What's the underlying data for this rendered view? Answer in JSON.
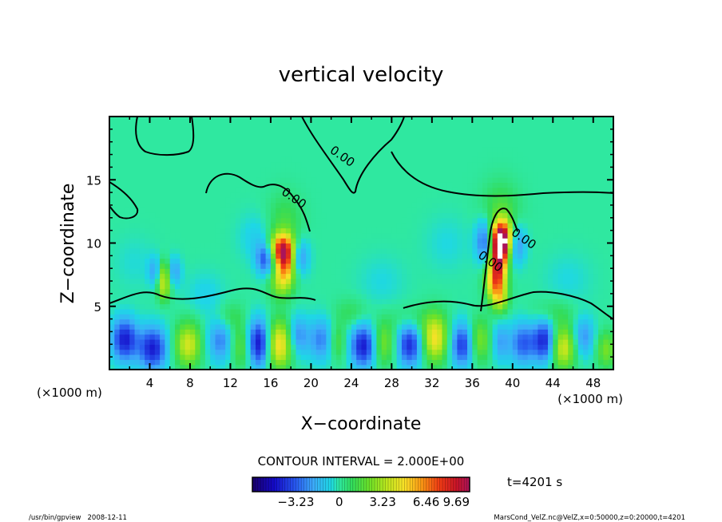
{
  "chart_data": {
    "type": "heatmap",
    "title": "vertical velocity",
    "xlabel": "X−coordinate",
    "ylabel": "Z−coordinate",
    "x_unit_left": "(×1000 m)",
    "x_unit_right": "(×1000 m)",
    "xlim": [
      0,
      50
    ],
    "ylim": [
      0,
      20
    ],
    "xticks": [
      4,
      8,
      12,
      16,
      20,
      24,
      28,
      32,
      36,
      40,
      44,
      48
    ],
    "yticks": [
      5,
      10,
      15
    ],
    "contour_interval_text": "CONTOUR INTERVAL = 2.000E+00",
    "time_text": "t=4201 s",
    "colorbar": {
      "min": -6.46,
      "max": 9.69,
      "tick_values": [
        -3.23,
        0,
        3.23,
        6.46,
        9.69
      ],
      "tick_labels": [
        "−3.23",
        "0",
        "3.23",
        "6.46",
        "9.69"
      ]
    },
    "contour_labels": [
      {
        "x": 21.8,
        "z": 17.2,
        "text": "0.00"
      },
      {
        "x": 17.0,
        "z": 13.9,
        "text": "0.00"
      },
      {
        "x": 36.5,
        "z": 8.9,
        "text": "0.00"
      },
      {
        "x": 39.8,
        "z": 10.7,
        "text": "0.00"
      }
    ],
    "features": [
      {
        "x": 17.2,
        "z": 9.5,
        "sx": 0.9,
        "sz": 0.9,
        "w": 8.5
      },
      {
        "x": 17.6,
        "z": 8.2,
        "sx": 0.7,
        "sz": 1.0,
        "w": 4.0
      },
      {
        "x": 17.0,
        "z": 7.0,
        "sx": 0.8,
        "sz": 1.0,
        "w": 3.0
      },
      {
        "x": 15.6,
        "z": 8.8,
        "sx": 0.7,
        "sz": 0.9,
        "w": -4.0
      },
      {
        "x": 18.7,
        "z": 9.0,
        "sx": 0.7,
        "sz": 1.0,
        "w": -3.5
      },
      {
        "x": 17.4,
        "z": 11.8,
        "sx": 1.2,
        "sz": 1.5,
        "w": 1.3
      },
      {
        "x": 38.9,
        "z": 10.3,
        "sx": 0.75,
        "sz": 1.0,
        "w": 12.0
      },
      {
        "x": 38.6,
        "z": 8.6,
        "sx": 0.6,
        "sz": 1.0,
        "w": 7.0
      },
      {
        "x": 38.3,
        "z": 7.0,
        "sx": 0.7,
        "sz": 0.9,
        "w": 5.5
      },
      {
        "x": 38.7,
        "z": 5.6,
        "sx": 0.6,
        "sz": 0.8,
        "w": 3.5
      },
      {
        "x": 37.4,
        "z": 10.2,
        "sx": 0.7,
        "sz": 1.2,
        "w": -4.0
      },
      {
        "x": 40.2,
        "z": 10.0,
        "sx": 0.7,
        "sz": 1.1,
        "w": -3.5
      },
      {
        "x": 38.8,
        "z": 12.5,
        "sx": 1.3,
        "sz": 1.6,
        "w": 1.6
      },
      {
        "x": 5.4,
        "z": 7.6,
        "sx": 0.45,
        "sz": 0.8,
        "w": 3.6
      },
      {
        "x": 5.4,
        "z": 6.3,
        "sx": 0.45,
        "sz": 0.7,
        "w": 2.5
      },
      {
        "x": 4.6,
        "z": 7.8,
        "sx": 0.5,
        "sz": 0.8,
        "w": -2.2
      },
      {
        "x": 6.4,
        "z": 7.8,
        "sx": 0.5,
        "sz": 0.8,
        "w": -2.2
      },
      {
        "x": 1.5,
        "z": 2.4,
        "sx": 0.9,
        "sz": 1.2,
        "w": -4.5
      },
      {
        "x": 4.3,
        "z": 1.7,
        "sx": 1.0,
        "sz": 1.2,
        "w": -4.5
      },
      {
        "x": 7.8,
        "z": 2.0,
        "sx": 0.9,
        "sz": 1.2,
        "w": 4.0
      },
      {
        "x": 11.0,
        "z": 2.3,
        "sx": 0.9,
        "sz": 1.2,
        "w": -2.6
      },
      {
        "x": 13.2,
        "z": 1.9,
        "sx": 0.8,
        "sz": 1.2,
        "w": 2.5
      },
      {
        "x": 14.8,
        "z": 2.1,
        "sx": 0.9,
        "sz": 1.3,
        "w": -5.2
      },
      {
        "x": 16.8,
        "z": 2.0,
        "sx": 0.9,
        "sz": 1.3,
        "w": 5.2
      },
      {
        "x": 18.7,
        "z": 2.7,
        "sx": 0.7,
        "sz": 1.1,
        "w": -2.5
      },
      {
        "x": 21.0,
        "z": 2.4,
        "sx": 0.9,
        "sz": 1.2,
        "w": -2.6
      },
      {
        "x": 22.6,
        "z": 2.2,
        "sx": 0.6,
        "sz": 1.0,
        "w": 1.8
      },
      {
        "x": 25.2,
        "z": 1.9,
        "sx": 0.9,
        "sz": 1.2,
        "w": -4.6
      },
      {
        "x": 27.2,
        "z": 2.1,
        "sx": 0.8,
        "sz": 1.2,
        "w": 2.5
      },
      {
        "x": 29.8,
        "z": 2.0,
        "sx": 0.9,
        "sz": 1.2,
        "w": -4.2
      },
      {
        "x": 32.3,
        "z": 2.5,
        "sx": 0.9,
        "sz": 1.3,
        "w": 4.8
      },
      {
        "x": 35.1,
        "z": 2.0,
        "sx": 0.9,
        "sz": 1.2,
        "w": -4.2
      },
      {
        "x": 36.6,
        "z": 2.3,
        "sx": 0.8,
        "sz": 1.2,
        "w": 3.0
      },
      {
        "x": 38.8,
        "z": 2.2,
        "sx": 0.6,
        "sz": 1.1,
        "w": -2.0
      },
      {
        "x": 41.0,
        "z": 2.1,
        "sx": 0.9,
        "sz": 1.2,
        "w": -3.2
      },
      {
        "x": 43.2,
        "z": 2.3,
        "sx": 0.8,
        "sz": 1.2,
        "w": -4.5
      },
      {
        "x": 45.0,
        "z": 1.8,
        "sx": 0.9,
        "sz": 1.2,
        "w": 4.2
      },
      {
        "x": 47.0,
        "z": 2.6,
        "sx": 0.8,
        "sz": 1.1,
        "w": -2.4
      },
      {
        "x": 49.3,
        "z": 1.6,
        "sx": 0.7,
        "sz": 1.0,
        "w": 2.4
      },
      {
        "x": 12.0,
        "z": 4.2,
        "sx": 1.0,
        "sz": 0.8,
        "w": 1.1
      },
      {
        "x": 24.0,
        "z": 4.5,
        "sx": 1.2,
        "sz": 0.8,
        "w": 1.0
      },
      {
        "x": 30.0,
        "z": 4.0,
        "sx": 1.5,
        "sz": 0.8,
        "w": 0.9
      },
      {
        "x": 44.0,
        "z": 4.5,
        "sx": 1.5,
        "sz": 0.8,
        "w": 1.0
      },
      {
        "x": 9.5,
        "z": 6.0,
        "sx": 1.3,
        "sz": 1.2,
        "w": -0.8
      },
      {
        "x": 27.0,
        "z": 7.0,
        "sx": 1.6,
        "sz": 1.4,
        "w": -0.6
      },
      {
        "x": 45.5,
        "z": 7.2,
        "sx": 1.6,
        "sz": 1.4,
        "w": -0.6
      },
      {
        "x": 2.5,
        "z": 8.5,
        "sx": 1.4,
        "sz": 1.4,
        "w": -0.5
      },
      {
        "x": 14.5,
        "z": 10.5,
        "sx": 1.2,
        "sz": 1.3,
        "w": -0.9
      },
      {
        "x": 33.5,
        "z": 10.0,
        "sx": 1.5,
        "sz": 1.5,
        "w": -0.6
      }
    ],
    "footer_left": "/usr/bin/gpview   2008-12-11",
    "footer_right": "MarsCond_VelZ.nc@VelZ,x=0:50000,z=0:20000,t=4201"
  }
}
